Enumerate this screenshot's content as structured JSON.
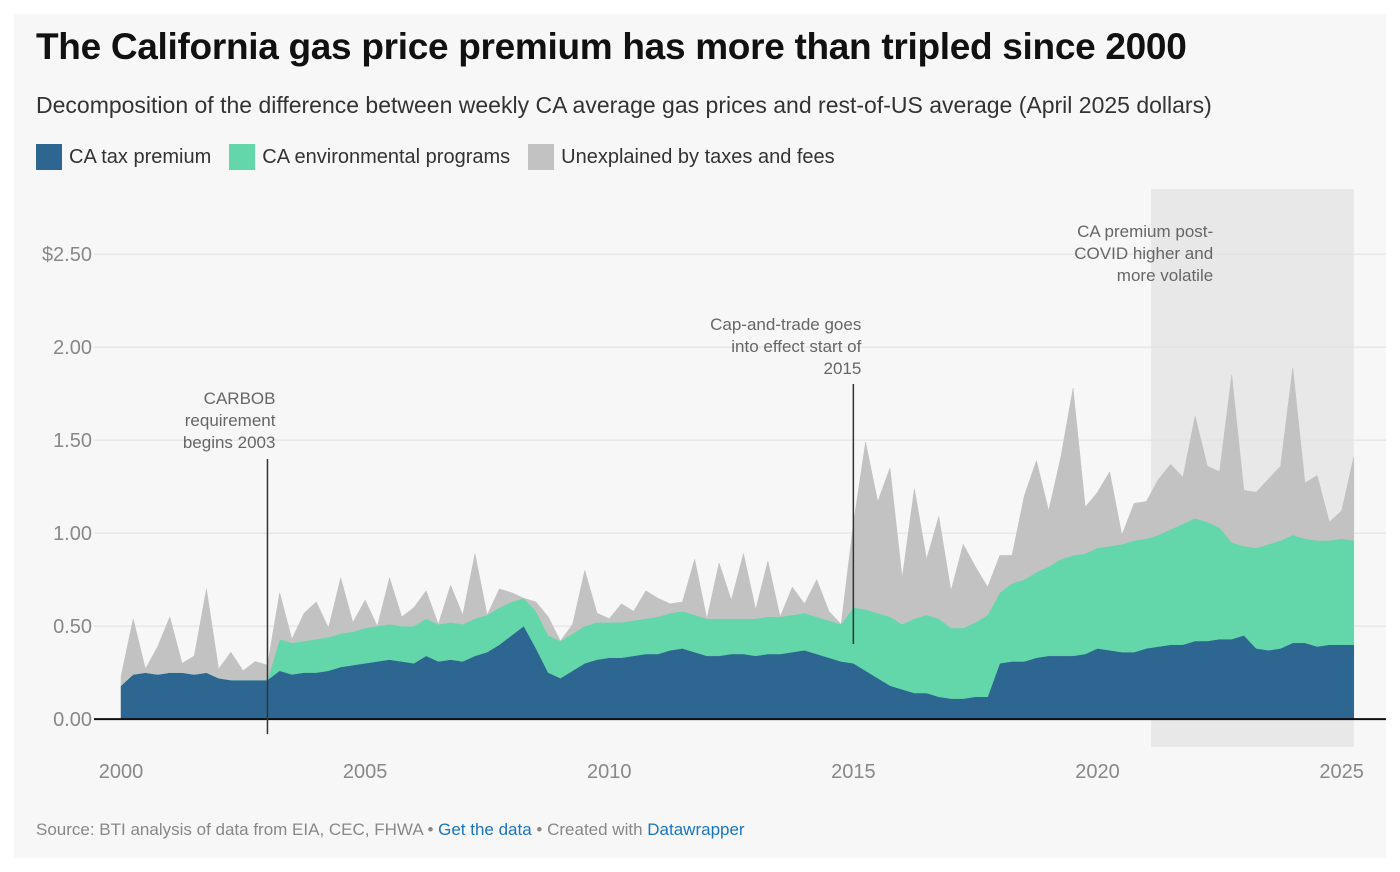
{
  "title": "The California gas price premium has more than tripled since 2000",
  "subtitle": "Decomposition of the difference between weekly CA average gas prices and rest-of-US average (April 2025 dollars)",
  "legend": [
    {
      "label": "CA tax premium",
      "color": "#2d6690"
    },
    {
      "label": "CA environmental programs",
      "color": "#63d7a9"
    },
    {
      "label": "Unexplained by taxes and fees",
      "color": "#c2c2c2"
    }
  ],
  "footer": {
    "source": "Source: BTI analysis of data from EIA, CEC, FHWA",
    "sep1": " • ",
    "get_data": "Get the data",
    "sep2": " • Created with ",
    "datawrapper": "Datawrapper"
  },
  "chart_data": {
    "type": "area",
    "stacked": true,
    "xlim": [
      2000,
      2025.5
    ],
    "ylim": [
      -0.15,
      2.85
    ],
    "x_ticks": [
      2000,
      2005,
      2010,
      2015,
      2020,
      2025
    ],
    "x_tick_labels": [
      "2000",
      "2005",
      "2010",
      "2015",
      "2020",
      "2025"
    ],
    "y_ticks": [
      0,
      0.5,
      1,
      1.5,
      2,
      2.5
    ],
    "y_tick_labels": [
      "0.00",
      "0.50",
      "1.00",
      "1.50",
      "2.00",
      "$2.50"
    ],
    "grid": true,
    "legend_position": "top-left",
    "x": [
      2000.0,
      2000.25,
      2000.5,
      2000.75,
      2001.0,
      2001.25,
      2001.5,
      2001.75,
      2002.0,
      2002.25,
      2002.5,
      2002.75,
      2003.0,
      2003.25,
      2003.5,
      2003.75,
      2004.0,
      2004.25,
      2004.5,
      2004.75,
      2005.0,
      2005.25,
      2005.5,
      2005.75,
      2006.0,
      2006.25,
      2006.5,
      2006.75,
      2007.0,
      2007.25,
      2007.5,
      2007.75,
      2008.0,
      2008.25,
      2008.5,
      2008.75,
      2009.0,
      2009.25,
      2009.5,
      2009.75,
      2010.0,
      2010.25,
      2010.5,
      2010.75,
      2011.0,
      2011.25,
      2011.5,
      2011.75,
      2012.0,
      2012.25,
      2012.5,
      2012.75,
      2013.0,
      2013.25,
      2013.5,
      2013.75,
      2014.0,
      2014.25,
      2014.5,
      2014.75,
      2015.0,
      2015.25,
      2015.5,
      2015.75,
      2016.0,
      2016.25,
      2016.5,
      2016.75,
      2017.0,
      2017.25,
      2017.5,
      2017.75,
      2018.0,
      2018.25,
      2018.5,
      2018.75,
      2019.0,
      2019.25,
      2019.5,
      2019.75,
      2020.0,
      2020.25,
      2020.5,
      2020.75,
      2021.0,
      2021.25,
      2021.5,
      2021.75,
      2022.0,
      2022.25,
      2022.5,
      2022.75,
      2023.0,
      2023.25,
      2023.5,
      2023.75,
      2024.0,
      2024.25,
      2024.5,
      2024.75,
      2025.0,
      2025.25
    ],
    "series": [
      {
        "name": "CA tax premium",
        "color": "#2d6690",
        "values": [
          0.18,
          0.24,
          0.25,
          0.24,
          0.25,
          0.25,
          0.24,
          0.25,
          0.22,
          0.21,
          0.21,
          0.21,
          0.21,
          0.26,
          0.24,
          0.25,
          0.25,
          0.26,
          0.28,
          0.29,
          0.3,
          0.31,
          0.32,
          0.31,
          0.3,
          0.34,
          0.31,
          0.32,
          0.31,
          0.34,
          0.36,
          0.4,
          0.45,
          0.5,
          0.38,
          0.25,
          0.22,
          0.26,
          0.3,
          0.32,
          0.33,
          0.33,
          0.34,
          0.35,
          0.35,
          0.37,
          0.38,
          0.36,
          0.34,
          0.34,
          0.35,
          0.35,
          0.34,
          0.35,
          0.35,
          0.36,
          0.37,
          0.35,
          0.33,
          0.31,
          0.3,
          0.26,
          0.22,
          0.18,
          0.16,
          0.14,
          0.14,
          0.12,
          0.11,
          0.11,
          0.12,
          0.12,
          0.3,
          0.31,
          0.31,
          0.33,
          0.34,
          0.34,
          0.34,
          0.35,
          0.38,
          0.37,
          0.36,
          0.36,
          0.38,
          0.39,
          0.4,
          0.4,
          0.42,
          0.42,
          0.43,
          0.43,
          0.45,
          0.38,
          0.37,
          0.38,
          0.41,
          0.41,
          0.39,
          0.4,
          0.4,
          0.4
        ]
      },
      {
        "name": "CA environmental programs",
        "color": "#63d7a9",
        "values": [
          0.0,
          0.0,
          0.0,
          0.0,
          0.0,
          0.0,
          0.0,
          0.0,
          0.0,
          0.0,
          0.0,
          0.0,
          0.0,
          0.17,
          0.17,
          0.17,
          0.18,
          0.18,
          0.18,
          0.18,
          0.19,
          0.19,
          0.19,
          0.19,
          0.2,
          0.2,
          0.2,
          0.2,
          0.2,
          0.2,
          0.2,
          0.2,
          0.18,
          0.15,
          0.2,
          0.2,
          0.2,
          0.2,
          0.2,
          0.2,
          0.19,
          0.19,
          0.19,
          0.19,
          0.2,
          0.2,
          0.2,
          0.2,
          0.2,
          0.2,
          0.19,
          0.19,
          0.2,
          0.2,
          0.2,
          0.2,
          0.2,
          0.2,
          0.2,
          0.2,
          0.3,
          0.33,
          0.35,
          0.37,
          0.35,
          0.4,
          0.42,
          0.42,
          0.38,
          0.38,
          0.4,
          0.44,
          0.38,
          0.42,
          0.44,
          0.46,
          0.48,
          0.52,
          0.54,
          0.54,
          0.54,
          0.56,
          0.58,
          0.6,
          0.59,
          0.6,
          0.62,
          0.65,
          0.66,
          0.64,
          0.6,
          0.52,
          0.48,
          0.54,
          0.57,
          0.58,
          0.58,
          0.56,
          0.57,
          0.56,
          0.57,
          0.56
        ]
      },
      {
        "name": "Unexplained by taxes and fees",
        "color": "#c2c2c2",
        "values": [
          0.05,
          0.3,
          0.02,
          0.15,
          0.3,
          0.05,
          0.1,
          0.45,
          0.05,
          0.15,
          0.05,
          0.1,
          0.08,
          0.25,
          0.02,
          0.15,
          0.2,
          0.05,
          0.3,
          0.05,
          0.15,
          0.0,
          0.25,
          0.05,
          0.1,
          0.15,
          0.0,
          0.2,
          0.05,
          0.35,
          0.0,
          0.1,
          0.05,
          0.0,
          0.05,
          0.1,
          0.0,
          0.05,
          0.3,
          0.05,
          0.02,
          0.1,
          0.05,
          0.15,
          0.1,
          0.05,
          0.05,
          0.3,
          0.0,
          0.3,
          0.1,
          0.35,
          0.05,
          0.3,
          0.0,
          0.15,
          0.05,
          0.2,
          0.05,
          0.0,
          0.45,
          0.9,
          0.6,
          0.8,
          0.25,
          0.7,
          0.3,
          0.55,
          0.2,
          0.45,
          0.3,
          0.15,
          0.2,
          0.15,
          0.45,
          0.6,
          0.3,
          0.55,
          0.9,
          0.25,
          0.3,
          0.4,
          0.05,
          0.2,
          0.2,
          0.3,
          0.35,
          0.25,
          0.55,
          0.3,
          0.3,
          0.9,
          0.3,
          0.3,
          0.35,
          0.4,
          0.9,
          0.3,
          0.35,
          0.1,
          0.15,
          0.45
        ]
      }
    ],
    "highlight_band": {
      "x_start": 2021.1,
      "x_end": 2025.25
    },
    "annotations": [
      {
        "text_lines": [
          "CARBOB",
          "requirement",
          "begins 2003"
        ],
        "x": 2003.0
      },
      {
        "text_lines": [
          "Cap-and-trade goes",
          "into effect start of",
          "2015"
        ],
        "x": 2015.0
      },
      {
        "text_lines": [
          "CA premium post-",
          "COVID higher and",
          "more volatile"
        ],
        "x": 2021.1
      }
    ]
  }
}
